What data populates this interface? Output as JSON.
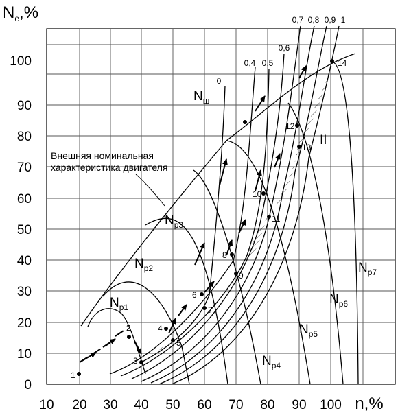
{
  "axes": {
    "y_title_main": "N",
    "y_title_sub": "e",
    "y_title_suffix": ",%",
    "x_title": "n,%",
    "x_ticks": [
      "10",
      "20",
      "30",
      "40",
      "50",
      "60",
      "70",
      "80",
      "90",
      "100"
    ],
    "y_ticks": [
      "0",
      "10",
      "20",
      "30",
      "40",
      "50",
      "60",
      "70",
      "80",
      "90",
      "100"
    ]
  },
  "curve_labels": {
    "Np1": {
      "main": "N",
      "sub": "p1"
    },
    "Np2": {
      "main": "N",
      "sub": "p2"
    },
    "Np3": {
      "main": "N",
      "sub": "p3"
    },
    "Np4": {
      "main": "N",
      "sub": "p4"
    },
    "Np5": {
      "main": "N",
      "sub": "p5"
    },
    "Np6": {
      "main": "N",
      "sub": "p6"
    },
    "Np7": {
      "main": "N",
      "sub": "p7"
    },
    "Nsh": {
      "main": "N",
      "sub": "ш"
    }
  },
  "prop_labels": [
    "0",
    "0,4",
    "0,5",
    "0,6",
    "0,7",
    "0,8",
    "0,9",
    "1"
  ],
  "points": [
    "1",
    "2",
    "3",
    "4",
    "5",
    "6",
    "7",
    "8",
    "9",
    "10",
    "11",
    "12",
    "13",
    "14"
  ],
  "annotation": {
    "line1": "Внешняя номинальная",
    "line2": "характеристика двигателя"
  },
  "region_label": "II",
  "colors": {
    "line": "#000000",
    "grid": "#555555",
    "background": "#ffffff"
  }
}
